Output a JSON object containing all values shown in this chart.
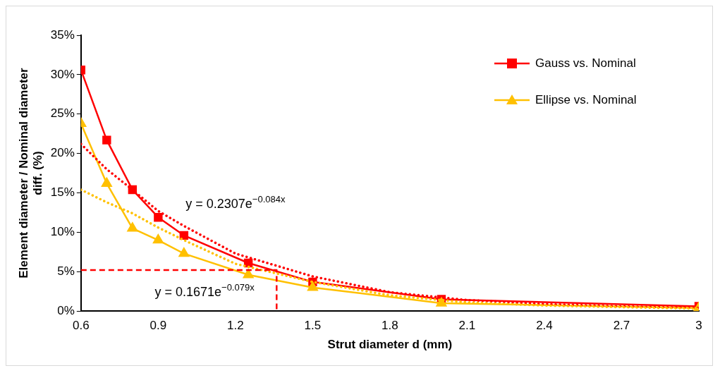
{
  "chart_data": {
    "type": "line",
    "xlabel": "Strut diameter d (mm)",
    "ylabel": "Element diameter / Nominal diameter diff. (%)",
    "xlim": [
      0.6,
      3
    ],
    "xticks": [
      0.6,
      0.9,
      1.2,
      1.5,
      1.8,
      2.1,
      2.4,
      2.7,
      3
    ],
    "ylim": [
      0,
      35
    ],
    "yticks": [
      {
        "value": 0,
        "label": "0%"
      },
      {
        "value": 5,
        "label": "5%"
      },
      {
        "value": 10,
        "label": "10%"
      },
      {
        "value": 15,
        "label": "15%"
      },
      {
        "value": 20,
        "label": "20%"
      },
      {
        "value": 25,
        "label": "25%"
      },
      {
        "value": 30,
        "label": "30%"
      },
      {
        "value": 35,
        "label": "35%"
      }
    ],
    "grid": false,
    "legend": "top right",
    "marker": "none",
    "series": [
      {
        "name": "Gauss vs. Nominal",
        "color": "#ff0000",
        "marker": "square",
        "line_style": "solid",
        "x": [
          0.6,
          0.7,
          0.8,
          0.9,
          1.0,
          1.25,
          1.5,
          2.0,
          3.0
        ],
        "values": [
          30.6,
          21.7,
          15.4,
          11.9,
          9.6,
          6.1,
          3.7,
          1.5,
          0.6
        ]
      },
      {
        "name": "Ellipse vs. Nominal",
        "color": "#ffc000",
        "marker": "triangle",
        "line_style": "solid",
        "x": [
          0.6,
          0.7,
          0.8,
          0.9,
          1.0,
          1.25,
          1.5,
          2.0,
          3.0
        ],
        "values": [
          23.8,
          16.2,
          10.5,
          9.0,
          7.3,
          4.6,
          3.0,
          1.0,
          0.4
        ]
      },
      {
        "color": "#ff0000",
        "line_style": "dotted",
        "x": [
          0.6,
          0.7,
          0.8,
          0.9,
          1.0,
          1.2,
          1.5,
          1.8,
          2.1,
          2.4,
          2.7,
          3.0
        ],
        "values": [
          21.2,
          18.0,
          15.4,
          12.7,
          10.8,
          7.3,
          4.4,
          2.4,
          1.4,
          0.9,
          0.6,
          0.4
        ]
      },
      {
        "color": "#ffc000",
        "line_style": "dotted",
        "x": [
          0.6,
          0.7,
          0.8,
          0.9,
          1.0,
          1.2,
          1.5,
          1.8,
          2.1,
          2.4,
          2.7,
          3.0
        ],
        "values": [
          15.4,
          13.8,
          12.4,
          10.6,
          9.0,
          6.0,
          3.7,
          2.0,
          1.1,
          0.7,
          0.5,
          0.3
        ]
      },
      {
        "color": "#ff0000",
        "line_style": "dashed",
        "x": [
          0.6,
          1.36,
          1.36
        ],
        "values": [
          5.2,
          5.2,
          0
        ]
      }
    ],
    "annotations": [
      "y = 0.2307e$^{−0.084x}$",
      "y = 0.1671e$^{−0.079x}$"
    ]
  }
}
